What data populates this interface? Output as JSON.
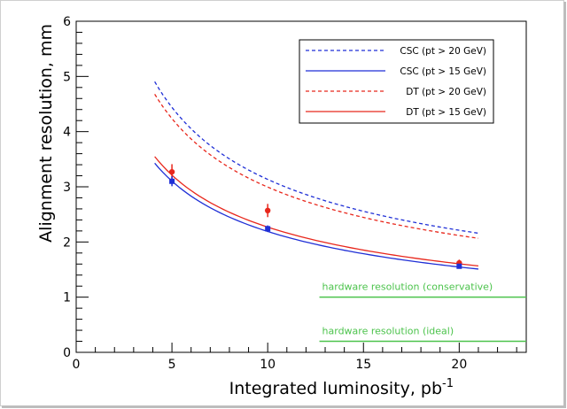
{
  "chart_data": {
    "type": "line",
    "title": "",
    "xlabel": "Integrated luminosity, pb",
    "xlabel_superscript": "-1",
    "ylabel": "Alignment resolution, mm",
    "xlim": [
      0,
      23.5
    ],
    "ylim": [
      0,
      6
    ],
    "x_ticks": [
      0,
      5,
      10,
      15,
      20
    ],
    "x_tick_labels": [
      "0",
      "5",
      "10",
      "15",
      "20"
    ],
    "y_ticks": [
      0,
      1,
      2,
      3,
      4,
      5,
      6
    ],
    "y_tick_labels": [
      "0",
      "1",
      "2",
      "3",
      "4",
      "5",
      "6"
    ],
    "grid": false,
    "legend_position": "top-right",
    "series": [
      {
        "name": "CSC (pt > 20 GeV)",
        "color": "#1f2fd6",
        "style": "dashed",
        "x": [
          4.1,
          6,
          8,
          10,
          12,
          14,
          16,
          18,
          21
        ],
        "y": [
          4.92,
          4.04,
          3.5,
          3.13,
          2.86,
          2.65,
          2.48,
          2.33,
          2.16
        ]
      },
      {
        "name": "CSC (pt > 15 GeV)",
        "color": "#1f2fd6",
        "style": "solid",
        "x": [
          4.1,
          6,
          8,
          10,
          12,
          14,
          16,
          18,
          21
        ],
        "y": [
          3.43,
          2.83,
          2.45,
          2.19,
          2.0,
          1.85,
          1.73,
          1.63,
          1.51
        ]
      },
      {
        "name": "DT (pt > 20 GeV)",
        "color": "#e8271c",
        "style": "dashed",
        "x": [
          4.1,
          6,
          8,
          10,
          12,
          14,
          16,
          18,
          21
        ],
        "y": [
          4.68,
          3.87,
          3.35,
          2.99,
          2.73,
          2.53,
          2.37,
          2.23,
          2.07
        ]
      },
      {
        "name": "DT (pt > 15 GeV)",
        "color": "#e8271c",
        "style": "solid",
        "x": [
          4.1,
          6,
          8,
          10,
          12,
          14,
          16,
          18,
          21
        ],
        "y": [
          3.55,
          2.93,
          2.54,
          2.27,
          2.07,
          1.92,
          1.79,
          1.69,
          1.57
        ]
      }
    ],
    "points": [
      {
        "series": "DT",
        "color": "#e8271c",
        "x": [
          5,
          10,
          20
        ],
        "y": [
          3.27,
          2.57,
          1.62
        ],
        "err": [
          0.14,
          0.12,
          0.06
        ]
      },
      {
        "series": "CSC",
        "color": "#1f2fd6",
        "x": [
          5,
          10,
          20
        ],
        "y": [
          3.1,
          2.24,
          1.56
        ],
        "err": [
          0.09,
          0.06,
          0.04
        ]
      }
    ],
    "reference_lines": [
      {
        "label": "hardware resolution (conservative)",
        "y": 1.0,
        "x_start": 12.7,
        "color": "#4cc34c"
      },
      {
        "label": "hardware resolution (ideal)",
        "y": 0.2,
        "x_start": 12.7,
        "color": "#4cc34c"
      }
    ]
  }
}
